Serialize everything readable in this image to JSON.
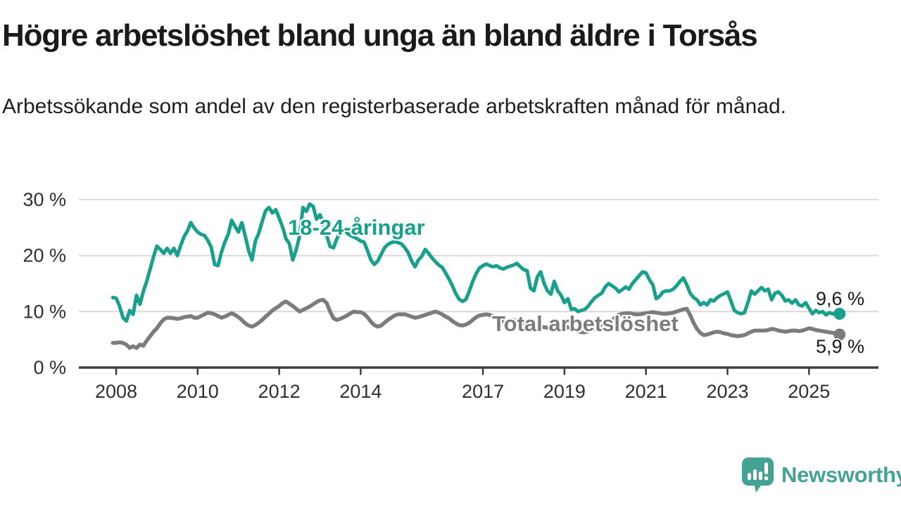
{
  "header": {
    "title": "Högre arbetslöshet bland unga än bland äldre i Torsås",
    "subtitle": "Arbetssökande som andel av den registerbaserade arbetskraften månad för månad."
  },
  "chart_data": {
    "type": "line",
    "title": "Högre arbetslöshet bland unga än bland äldre i Torsås",
    "unit": "%",
    "x_start": "2007-12",
    "x_end": "2025-10",
    "x_interval": "monthly",
    "grid": "horizontal",
    "ylim": [
      0,
      32
    ],
    "y_ticks": [
      {
        "value": 0,
        "label": "0 %"
      },
      {
        "value": 10,
        "label": "10 %"
      },
      {
        "value": 20,
        "label": "20 %"
      },
      {
        "value": 30,
        "label": "30 %"
      }
    ],
    "x_ticks": [
      {
        "year": 2008,
        "label": "2008"
      },
      {
        "year": 2010,
        "label": "2010"
      },
      {
        "year": 2012,
        "label": "2012"
      },
      {
        "year": 2014,
        "label": "2014"
      },
      {
        "year": 2017,
        "label": "2017"
      },
      {
        "year": 2019,
        "label": "2019"
      },
      {
        "year": 2021,
        "label": "2021"
      },
      {
        "year": 2023,
        "label": "2023"
      },
      {
        "year": 2025,
        "label": "2025"
      }
    ],
    "series": [
      {
        "name": "18-24-åringar",
        "color": "#18a08c",
        "end_label": "9,6 %",
        "end_value": 9.6,
        "values": [
          12.5,
          12.4,
          11.0,
          8.9,
          8.3,
          10.2,
          9.5,
          12.9,
          11.3,
          13.6,
          15.4,
          17.6,
          19.8,
          21.7,
          21.1,
          20.4,
          21.3,
          20.4,
          21.3,
          20.0,
          21.8,
          23.4,
          24.4,
          25.9,
          24.9,
          24.2,
          23.8,
          23.6,
          22.7,
          21.5,
          18.4,
          18.2,
          20.6,
          22.4,
          23.8,
          26.3,
          25.2,
          24.2,
          25.9,
          23.5,
          20.9,
          19.2,
          22.6,
          24.0,
          26.1,
          28.0,
          28.6,
          27.6,
          28.2,
          26.7,
          25.1,
          23.0,
          22.1,
          19.2,
          21.0,
          23.5,
          28.6,
          27.9,
          29.2,
          28.8,
          26.5,
          27.3,
          25.8,
          23.5,
          21.6,
          21.4,
          23.0,
          24.3,
          24.8,
          24.0,
          23.6,
          23.3,
          23.0,
          22.6,
          22.4,
          20.9,
          19.2,
          18.4,
          19.0,
          20.2,
          21.4,
          22.0,
          22.3,
          22.5,
          22.3,
          22.1,
          21.4,
          20.5,
          19.0,
          18.0,
          19.2,
          19.9,
          21.1,
          20.4,
          19.6,
          18.9,
          18.3,
          17.9,
          16.9,
          15.8,
          14.6,
          13.2,
          12.2,
          11.8,
          12.2,
          13.7,
          15.4,
          16.8,
          17.8,
          18.2,
          18.5,
          18.2,
          18.0,
          18.2,
          17.8,
          17.6,
          17.9,
          18.1,
          18.3,
          18.6,
          18.0,
          17.5,
          17.3,
          14.2,
          13.7,
          16.2,
          17.1,
          15.0,
          13.7,
          13.1,
          15.4,
          13.7,
          12.9,
          11.6,
          12.3,
          10.4,
          10.5,
          10.0,
          10.2,
          10.4,
          11.0,
          11.8,
          12.5,
          12.9,
          13.3,
          14.4,
          15.0,
          14.6,
          14.2,
          13.5,
          13.9,
          14.4,
          14.0,
          15.0,
          15.7,
          16.4,
          17.1,
          16.9,
          15.7,
          14.8,
          12.3,
          12.7,
          13.5,
          13.7,
          13.7,
          14.0,
          14.6,
          15.4,
          16.0,
          14.8,
          13.3,
          12.5,
          12.1,
          11.2,
          11.6,
          11.2,
          12.1,
          11.9,
          12.5,
          12.9,
          13.2,
          13.5,
          11.9,
          10.2,
          9.8,
          9.6,
          9.8,
          11.6,
          13.7,
          13.1,
          13.7,
          14.3,
          13.7,
          14.0,
          12.1,
          13.3,
          13.5,
          12.9,
          11.9,
          12.1,
          11.5,
          12.1,
          11.2,
          11.0,
          11.6,
          10.6,
          9.6,
          10.2,
          9.8,
          10.0,
          9.4,
          9.8,
          9.6,
          9.5,
          9.6
        ]
      },
      {
        "name": "Total arbetslöshet",
        "color": "#7c7c7c",
        "end_label": "5,9 %",
        "end_value": 5.9,
        "values": [
          4.4,
          4.4,
          4.5,
          4.4,
          4.1,
          3.5,
          3.8,
          3.5,
          4.1,
          3.9,
          4.8,
          5.6,
          6.4,
          7.0,
          7.9,
          8.6,
          8.9,
          8.9,
          8.8,
          8.7,
          8.8,
          9.0,
          9.1,
          9.2,
          8.9,
          8.9,
          9.2,
          9.5,
          9.8,
          9.7,
          9.5,
          9.2,
          8.9,
          9.1,
          9.4,
          9.7,
          9.4,
          9.0,
          8.5,
          7.9,
          7.5,
          7.3,
          7.6,
          8.0,
          8.5,
          9.1,
          9.6,
          10.2,
          10.6,
          11.0,
          11.5,
          11.8,
          11.4,
          11.0,
          10.5,
          10.0,
          10.3,
          10.6,
          10.9,
          11.3,
          11.7,
          12.0,
          12.1,
          11.5,
          10.0,
          8.8,
          8.5,
          8.7,
          9.0,
          9.3,
          9.7,
          10.0,
          9.9,
          9.9,
          9.6,
          9.0,
          8.2,
          7.6,
          7.3,
          7.5,
          8.0,
          8.5,
          8.9,
          9.3,
          9.5,
          9.5,
          9.5,
          9.3,
          9.1,
          8.9,
          9.0,
          9.2,
          9.4,
          9.6,
          9.8,
          10.0,
          9.8,
          9.5,
          9.1,
          8.8,
          8.3,
          7.9,
          7.6,
          7.5,
          7.7,
          8.0,
          8.5,
          9.0,
          9.3,
          9.4,
          9.5,
          9.4,
          9.1,
          8.8,
          8.5,
          8.3,
          8.2,
          8.3,
          8.5,
          8.4,
          8.1,
          7.9,
          7.8,
          7.6,
          7.5,
          7.4,
          7.3,
          7.2,
          7.1,
          7.1,
          7.2,
          7.2,
          7.1,
          7.1,
          7.2,
          7.0,
          6.8,
          6.5,
          6.3,
          6.3,
          6.5,
          6.7,
          6.9,
          7.1,
          7.4,
          7.6,
          7.9,
          8.4,
          9.0,
          9.4,
          9.6,
          9.7,
          9.7,
          9.6,
          9.5,
          9.5,
          9.6,
          9.7,
          9.8,
          9.9,
          9.8,
          9.7,
          9.6,
          9.6,
          9.7,
          9.8,
          10.0,
          10.2,
          10.4,
          10.5,
          9.4,
          8.0,
          6.9,
          6.2,
          5.8,
          5.9,
          6.1,
          6.3,
          6.4,
          6.3,
          6.1,
          6.0,
          5.8,
          5.7,
          5.6,
          5.7,
          5.8,
          6.1,
          6.4,
          6.6,
          6.6,
          6.6,
          6.6,
          6.7,
          6.9,
          6.8,
          6.6,
          6.5,
          6.4,
          6.5,
          6.6,
          6.6,
          6.5,
          6.6,
          6.8,
          7.0,
          6.9,
          6.7,
          6.6,
          6.5,
          6.4,
          6.3,
          6.2,
          6.0,
          5.9
        ]
      }
    ],
    "colors": {
      "gridline": "#d8d8d8",
      "axis": "#3e3e3e",
      "tick_text": "#2f2f2f"
    }
  },
  "footer": {
    "brand": "Newsworthy",
    "brand_color": "#44a392"
  }
}
